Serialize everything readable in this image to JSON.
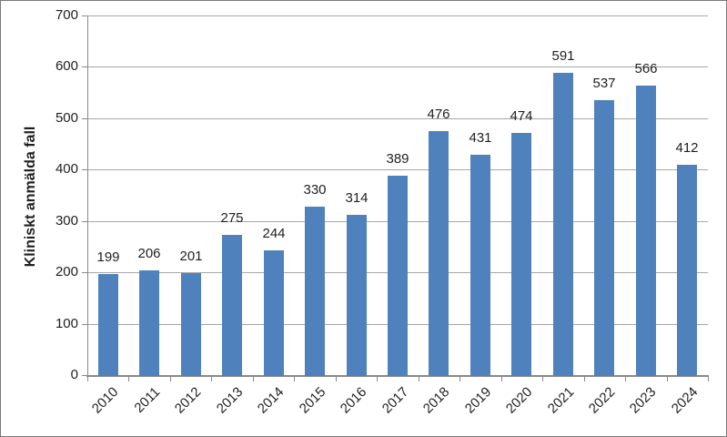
{
  "figure": {
    "background": "#ffffff",
    "border_color": "#7a7a7a"
  },
  "chart_data": {
    "type": "bar",
    "title": "",
    "xlabel": "",
    "ylabel": "Kliniskt anmälda fall",
    "categories": [
      "2010",
      "2011",
      "2012",
      "2013",
      "2014",
      "2015",
      "2016",
      "2017",
      "2018",
      "2019",
      "2020",
      "2021",
      "2022",
      "2023",
      "2024"
    ],
    "values": [
      199,
      206,
      201,
      275,
      244,
      330,
      314,
      389,
      476,
      431,
      474,
      591,
      537,
      566,
      412
    ],
    "data_labels_visible": true,
    "ylim": [
      0,
      700
    ],
    "yticks": [
      0,
      100,
      200,
      300,
      400,
      500,
      600,
      700
    ],
    "grid": true,
    "legend": "none",
    "colors": {
      "bar": "#4f81bd",
      "gridline": "#a6a6a6",
      "axis": "#898989",
      "text": "#1f1f1f"
    }
  }
}
